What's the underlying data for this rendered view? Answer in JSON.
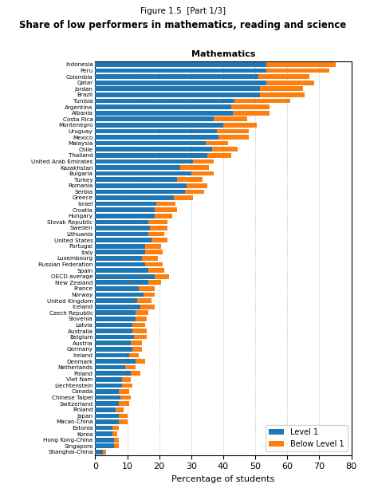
{
  "chart_data": {
    "type": "bar",
    "orientation": "horizontal",
    "stacked": true,
    "subtitle": "Figure 1.5  [Part 1/3]",
    "title": "Share of low performers in mathematics, reading and science",
    "annotations": [
      {
        "text": "Mathematics"
      }
    ],
    "x_label": "Percentage of students",
    "categories": [
      "Indonesia",
      "Peru",
      "Colombia",
      "Qatar",
      "Jordan",
      "Brazil",
      "Tunisia",
      "Argentina",
      "Albania",
      "Costa Rica",
      "Montenegro",
      "Uruguay",
      "Mexico",
      "Malaysia",
      "Chile",
      "Thailand",
      "United Arab Emirates",
      "Kazakhstan",
      "Bulgaria",
      "Turkey",
      "Romania",
      "Serbia",
      "Greece",
      "Israel",
      "Croatia",
      "Hungary",
      "Slovak Republic",
      "Sweden",
      "Lithuania",
      "United States",
      "Portugal",
      "Italy",
      "Luxembourg",
      "Russian Federation",
      "Spain",
      "OECD average",
      "New Zealand",
      "France",
      "Norway",
      "United Kingdom",
      "Iceland",
      "Czech Republic",
      "Slovenia",
      "Latvia",
      "Australia",
      "Belgium",
      "Austria",
      "Germany",
      "Ireland",
      "Denmark",
      "Netherlands",
      "Poland",
      "Viet Nam",
      "Liechtenstein",
      "Canada",
      "Chinese Taipei",
      "Switzerland",
      "Finland",
      "Japan",
      "Macao-China",
      "Estonia",
      "Korea",
      "Hong Kong-China",
      "Singapore",
      "Shanghai-China"
    ],
    "series": [
      {
        "name": "Level 1",
        "values": [
          53.5,
          53.5,
          51.0,
          53.5,
          51.5,
          51.5,
          43.5,
          42.5,
          43.0,
          37.0,
          40.0,
          38.0,
          38.5,
          34.5,
          36.5,
          35.0,
          30.5,
          26.5,
          30.0,
          25.5,
          28.5,
          28.0,
          24.5,
          19.0,
          18.5,
          18.5,
          16.5,
          17.0,
          16.5,
          17.5,
          15.5,
          15.5,
          14.5,
          15.5,
          16.5,
          18.5,
          16.5,
          13.5,
          15.0,
          13.0,
          14.0,
          12.5,
          12.5,
          11.5,
          11.5,
          12.0,
          11.0,
          11.5,
          10.5,
          12.5,
          9.5,
          11.0,
          8.5,
          8.5,
          7.5,
          8.0,
          7.5,
          6.5,
          7.5,
          7.5,
          5.5,
          5.5,
          6.0,
          6.0,
          2.5
        ]
      },
      {
        "name": "Below Level 1",
        "values": [
          21.5,
          19.5,
          16.0,
          15.0,
          13.5,
          14.0,
          17.5,
          12.0,
          11.5,
          10.5,
          10.5,
          10.0,
          9.5,
          7.0,
          8.0,
          7.5,
          6.5,
          9.0,
          7.0,
          8.0,
          6.5,
          6.0,
          6.0,
          6.0,
          7.0,
          5.5,
          6.0,
          5.5,
          5.0,
          5.0,
          5.0,
          5.5,
          5.0,
          5.5,
          5.0,
          4.5,
          4.0,
          5.0,
          3.5,
          4.5,
          4.5,
          4.0,
          3.5,
          4.0,
          4.5,
          4.0,
          3.5,
          3.0,
          3.0,
          3.0,
          3.0,
          3.0,
          2.5,
          3.0,
          3.0,
          3.0,
          3.0,
          2.5,
          2.5,
          2.5,
          2.0,
          1.5,
          1.5,
          1.5,
          1.0
        ]
      }
    ],
    "xlim": [
      0,
      80
    ],
    "xticks": [
      0,
      10,
      20,
      30,
      40,
      50,
      60,
      70,
      80
    ],
    "grid": true,
    "legend": "lower right"
  }
}
